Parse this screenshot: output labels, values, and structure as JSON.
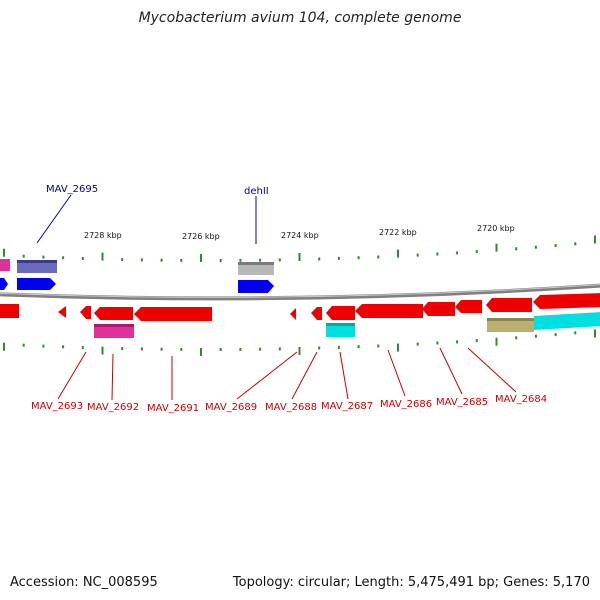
{
  "title": "Mycobacterium avium 104, complete genome",
  "footer": {
    "accession": "Accession: NC_008595",
    "summary": "Topology: circular; Length: 5,475,491 bp; Genes: 5,170"
  },
  "colors": {
    "backbone": "#808080",
    "tick": "#2e8b2e",
    "label_forward": "#0000aa",
    "label_reverse": "#cc0000",
    "red": "#ee0000",
    "blue": "#0000ee",
    "magenta": "#e0309a",
    "slate": "#6a6ab8",
    "gray": "#b8b8b8",
    "cyan": "#00e0e0",
    "olive": "#b8b070"
  },
  "scale_labels": [
    "2728 kbp",
    "2726 kbp",
    "2724 kbp",
    "2722 kbp",
    "2720 kbp"
  ],
  "forward_labels": [
    "MAV_2695",
    "dehII"
  ],
  "reverse_labels": [
    "MAV_2693",
    "MAV_2692",
    "MAV_2691",
    "MAV_2689",
    "MAV_2688",
    "MAV_2687",
    "MAV_2686",
    "MAV_2685",
    "MAV_2684"
  ]
}
